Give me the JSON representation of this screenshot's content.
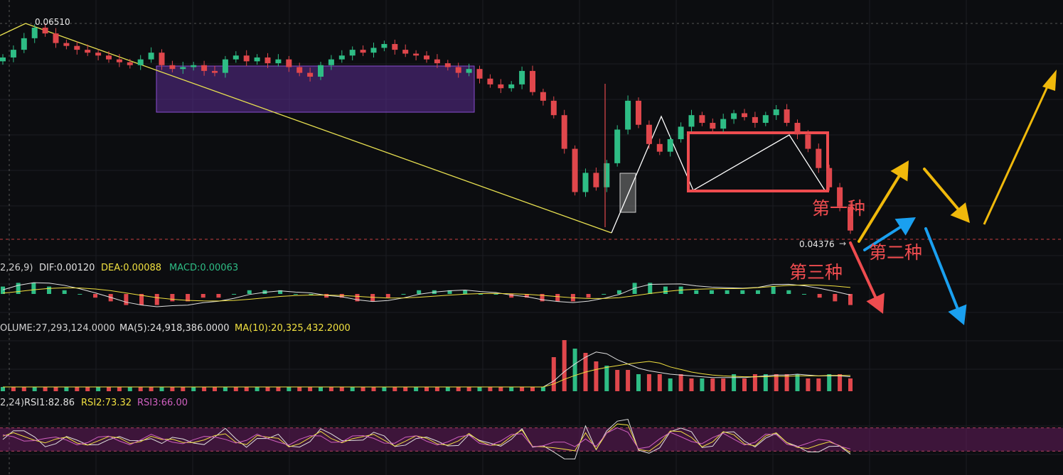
{
  "chart_data": [
    {
      "type": "candlestick",
      "panel": "price",
      "price_labels": {
        "high": "0.06510",
        "current": "0.04376"
      },
      "y_range_approx": [
        0.0425,
        0.0665
      ],
      "candle_closes_approx": [
        0.062,
        0.0628,
        0.064,
        0.0651,
        0.0645,
        0.0635,
        0.0632,
        0.0628,
        0.0625,
        0.0622,
        0.0618,
        0.0615,
        0.0612,
        0.0618,
        0.0625,
        0.0612,
        0.0608,
        0.061,
        0.0612,
        0.0606,
        0.0604,
        0.0618,
        0.0622,
        0.0616,
        0.062,
        0.0614,
        0.0618,
        0.061,
        0.0604,
        0.06,
        0.0612,
        0.0618,
        0.0622,
        0.0628,
        0.0625,
        0.063,
        0.0634,
        0.0628,
        0.0624,
        0.0622,
        0.0618,
        0.0614,
        0.061,
        0.0604,
        0.0608,
        0.0598,
        0.0592,
        0.0588,
        0.0592,
        0.0606,
        0.0584,
        0.0575,
        0.056,
        0.0525,
        0.048,
        0.05,
        0.0485,
        0.051,
        0.0545,
        0.0575,
        0.055,
        0.053,
        0.0522,
        0.0535,
        0.0548,
        0.056,
        0.0552,
        0.0546,
        0.0556,
        0.0562,
        0.0558,
        0.0552,
        0.056,
        0.0566,
        0.0552,
        0.054,
        0.0525,
        0.0505,
        0.0485,
        0.0465,
        0.044
      ]
    },
    {
      "type": "bar+line",
      "panel": "macd",
      "label_params": "2,26,9)",
      "DIF": "DIF:0.00120",
      "DEA": "DEA:0.00088",
      "MACD": "MACD:0.00063",
      "histogram_approx": [
        2,
        3,
        3,
        2,
        1,
        0,
        -1,
        -2,
        -3,
        -3,
        -3,
        -2,
        -2,
        -1,
        -1,
        0,
        1,
        1,
        1,
        0,
        0,
        -1,
        -1,
        -2,
        -2,
        -1,
        0,
        1,
        1,
        1,
        1,
        0,
        0,
        -1,
        -1,
        -2,
        -2,
        -2,
        -1,
        0,
        1,
        3,
        3,
        2,
        2,
        1,
        1,
        1,
        1,
        1,
        2,
        1,
        0,
        -1,
        -2,
        -3
      ]
    },
    {
      "type": "bar+line",
      "panel": "volume",
      "VOLUME": "OLUME:27,293,124.0000",
      "MA5": "MA(5):24,918,386.0000",
      "MA10": "MA(10):20,325,432.2000",
      "volume_approx": [
        1,
        1,
        1,
        1,
        1,
        1,
        1,
        1,
        1,
        1,
        1,
        1,
        1,
        1,
        1,
        1,
        1,
        1,
        1,
        1,
        1,
        1,
        1,
        1,
        1,
        1,
        1,
        1,
        1,
        1,
        1,
        1,
        1,
        1,
        1,
        1,
        1,
        1,
        1,
        1,
        1,
        1,
        1,
        1,
        1,
        1,
        1,
        1,
        1,
        1,
        1,
        1,
        8,
        12,
        10,
        9,
        7,
        6,
        5,
        5,
        4,
        4,
        4,
        3,
        4,
        3,
        3,
        3,
        3,
        4,
        3,
        4,
        4,
        4,
        4,
        4,
        3,
        3,
        4,
        4,
        3
      ]
    },
    {
      "type": "line",
      "panel": "rsi",
      "label_params": "2,24)",
      "RSI1": "RSI1:82.86",
      "RSI2": "RSI2:73.32",
      "RSI3": "RSI3:66.00",
      "band": [
        30,
        70
      ]
    }
  ],
  "annotations": {
    "scenario_1": "第一种",
    "scenario_2": "第二种",
    "scenario_3": "第三种"
  },
  "colors": {
    "background": "#0c0d10",
    "up": "#2ebd85",
    "down": "#e0474c",
    "trendline": "#e8e050",
    "box_purple": "#5b2d91",
    "box_red": "#ee4c4f",
    "arrow_yellow": "#f0b90b",
    "arrow_blue": "#1aa0f0",
    "arrow_red": "#ee4c4f",
    "dif": "#e0e0e0",
    "dea": "#f0e040",
    "macd": "#2ebd85",
    "ma5": "#e0e0e0",
    "ma10": "#f0e040",
    "rsi1": "#e0e0e0",
    "rsi2": "#f0e040",
    "rsi3": "#d060c0"
  }
}
